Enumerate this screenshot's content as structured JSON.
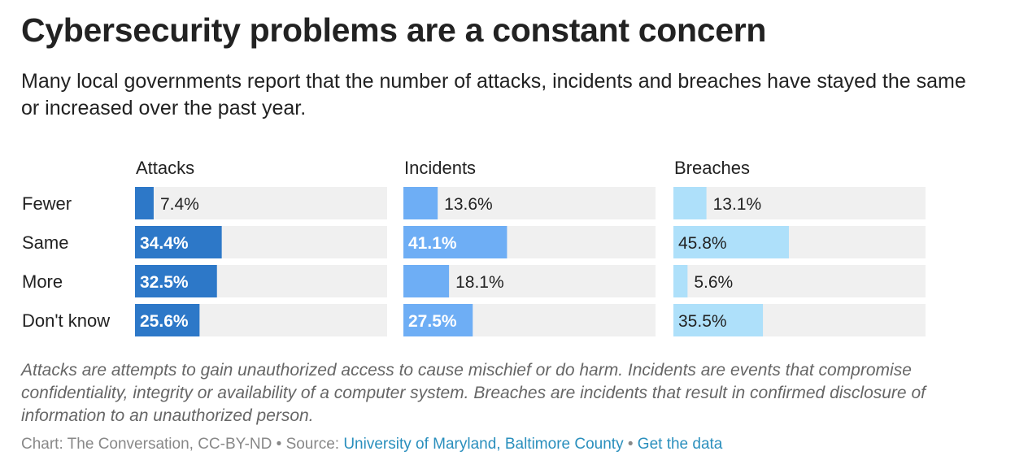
{
  "title": "Cybersecurity problems are a constant concern",
  "subtitle": "Many local governments report that the number of attacks, incidents and breaches have stayed the same or increased over the past year.",
  "note": "Attacks are attempts to gain unauthorized access to cause mischief or do harm. Incidents are events that compromise confidentiality, integrity or availability of a computer system. Breaches are incidents that result in confirmed disclosure of information to an unauthorized person.",
  "footer": {
    "credit": "Chart: The Conversation, CC-BY-ND",
    "separator": " • ",
    "source_prefix": "Source: ",
    "source_link": "University of Maryland, Baltimore County",
    "data_link": "Get the data"
  },
  "colors": {
    "attacks": "#2d78c8",
    "incidents": "#6eaef5",
    "breaches": "#aee0fa",
    "track": "#f0f0f0"
  },
  "chart_data": {
    "type": "bar",
    "orientation": "horizontal",
    "layout": "small-multiples",
    "categories": [
      "Fewer",
      "Same",
      "More",
      "Don't know"
    ],
    "xlim": [
      0,
      100
    ],
    "value_suffix": "%",
    "series": [
      {
        "name": "Attacks",
        "values": [
          7.4,
          34.4,
          32.5,
          25.6
        ]
      },
      {
        "name": "Incidents",
        "values": [
          13.6,
          41.1,
          18.1,
          27.5
        ]
      },
      {
        "name": "Breaches",
        "values": [
          13.1,
          45.8,
          5.6,
          35.5
        ]
      }
    ]
  }
}
